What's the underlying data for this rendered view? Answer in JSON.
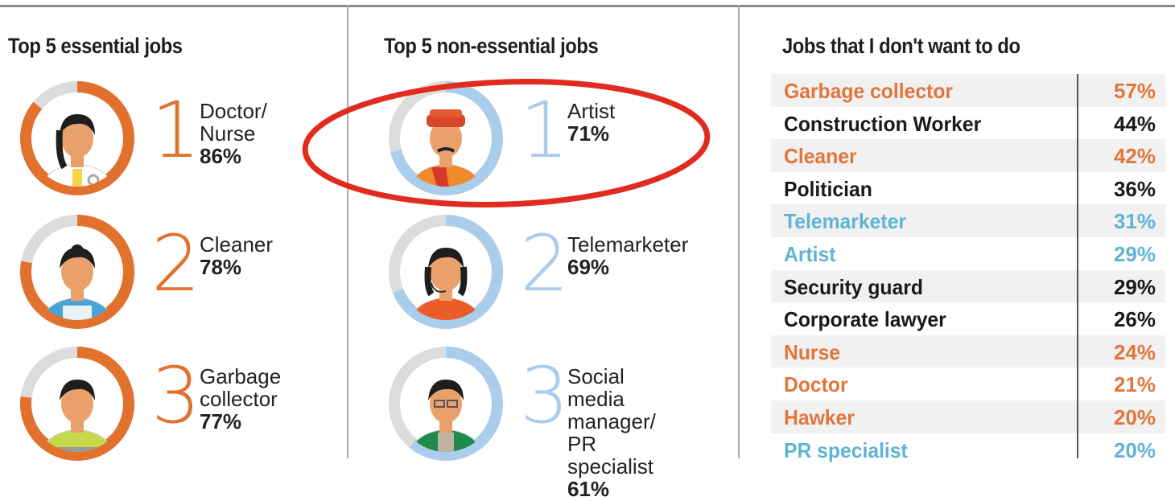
{
  "colors": {
    "orange": "#e2763a",
    "blue": "#5fb4d6",
    "ring_orange": "#e2712e",
    "ring_blue": "#a9cdea",
    "ring_track": "#dcdcdc",
    "black": "#1a1a1a",
    "annotation_red": "#e22b1f"
  },
  "chart_data": [
    {
      "type": "donut",
      "title": "Top 5 essential jobs",
      "items": [
        {
          "rank": "1",
          "label": "Doctor/\nNurse",
          "value_text": "86%",
          "value": 86
        },
        {
          "rank": "2",
          "label": "Cleaner",
          "value_text": "78%",
          "value": 78
        },
        {
          "rank": "3",
          "label": "Garbage\ncollector",
          "value_text": "77%",
          "value": 77
        }
      ]
    },
    {
      "type": "donut",
      "title": "Top 5 non-essential jobs",
      "items": [
        {
          "rank": "1",
          "label": "Artist",
          "value_text": "71%",
          "value": 71
        },
        {
          "rank": "2",
          "label": "Telemarketer",
          "value_text": "69%",
          "value": 69
        },
        {
          "rank": "3",
          "label": "Social media\nmanager/\nPR specialist",
          "value_text": "61%",
          "value": 61
        }
      ]
    },
    {
      "type": "table",
      "title": "Jobs that I don't want to do",
      "rows": [
        {
          "job": "Garbage collector",
          "value_text": "57%",
          "value": 57,
          "color": "orange"
        },
        {
          "job": "Construction Worker",
          "value_text": "44%",
          "value": 44,
          "color": "black"
        },
        {
          "job": "Cleaner",
          "value_text": "42%",
          "value": 42,
          "color": "orange"
        },
        {
          "job": "Politician",
          "value_text": "36%",
          "value": 36,
          "color": "black"
        },
        {
          "job": "Telemarketer",
          "value_text": "31%",
          "value": 31,
          "color": "blue"
        },
        {
          "job": "Artist",
          "value_text": "29%",
          "value": 29,
          "color": "blue"
        },
        {
          "job": "Security guard",
          "value_text": "29%",
          "value": 29,
          "color": "black"
        },
        {
          "job": "Corporate lawyer",
          "value_text": "26%",
          "value": 26,
          "color": "black"
        },
        {
          "job": "Nurse",
          "value_text": "24%",
          "value": 24,
          "color": "orange"
        },
        {
          "job": "Doctor",
          "value_text": "21%",
          "value": 21,
          "color": "orange"
        },
        {
          "job": "Hawker",
          "value_text": "20%",
          "value": 20,
          "color": "orange"
        },
        {
          "job": "PR specialist",
          "value_text": "20%",
          "value": 20,
          "color": "blue"
        }
      ]
    }
  ]
}
